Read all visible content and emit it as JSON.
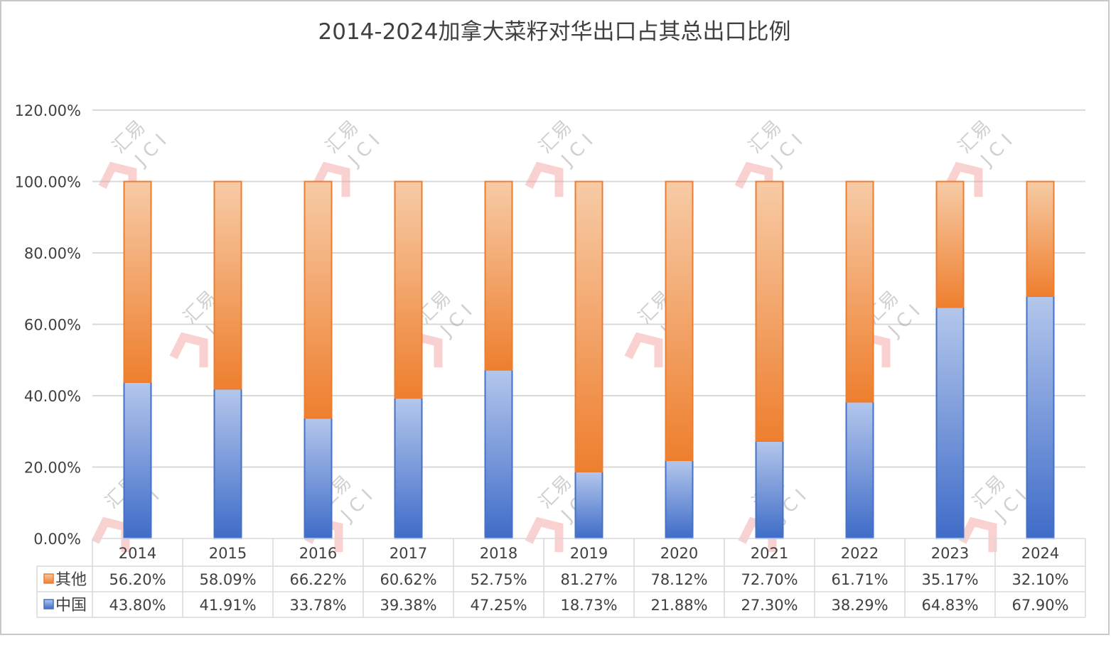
{
  "chart_data": {
    "type": "bar",
    "stacked": true,
    "title": "2014-2024加拿大菜籽对华出口占其总出口比例",
    "xlabel": "",
    "ylabel": "",
    "ylim": [
      0,
      120
    ],
    "yticks": [
      "0.00%",
      "20.00%",
      "40.00%",
      "60.00%",
      "80.00%",
      "100.00%",
      "120.00%"
    ],
    "ytick_values": [
      0,
      20,
      40,
      60,
      80,
      100,
      120
    ],
    "grid": true,
    "legend": "data-table-bottom",
    "categories": [
      "2014",
      "2015",
      "2016",
      "2017",
      "2018",
      "2019",
      "2020",
      "2021",
      "2022",
      "2023",
      "2024"
    ],
    "series": [
      {
        "name": "中国",
        "color": "#4472c4",
        "values": [
          43.8,
          41.91,
          33.78,
          39.38,
          47.25,
          18.73,
          21.88,
          27.3,
          38.29,
          64.83,
          67.9
        ],
        "labels": [
          "43.80%",
          "41.91%",
          "33.78%",
          "39.38%",
          "47.25%",
          "18.73%",
          "21.88%",
          "27.30%",
          "38.29%",
          "64.83%",
          "67.90%"
        ]
      },
      {
        "name": "其他",
        "color": "#ed7d31",
        "values": [
          56.2,
          58.09,
          66.22,
          60.62,
          52.75,
          81.27,
          78.12,
          72.7,
          61.71,
          35.17,
          32.1
        ],
        "labels": [
          "56.20%",
          "58.09%",
          "66.22%",
          "60.62%",
          "52.75%",
          "81.27%",
          "78.12%",
          "72.70%",
          "61.71%",
          "35.17%",
          "32.10%"
        ]
      }
    ],
    "watermark": "汇易 JCI"
  }
}
